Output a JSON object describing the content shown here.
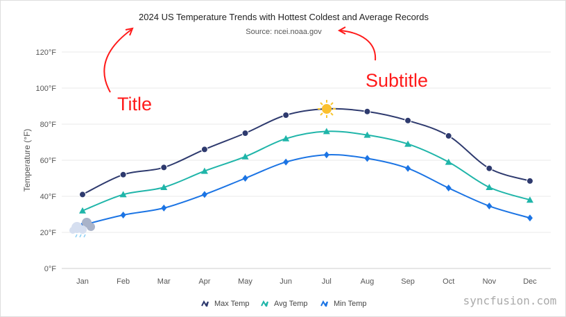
{
  "chart_data": {
    "type": "line",
    "title": "2024 US Temperature Trends with Hottest Coldest and Average Records",
    "subtitle": "Source: ncei.noaa.gov",
    "xlabel": "",
    "ylabel": "Temperature (°F)",
    "ylim": [
      0,
      120
    ],
    "yticks": [
      "0°F",
      "20°F",
      "40°F",
      "60°F",
      "80°F",
      "100°F",
      "120°F"
    ],
    "ytick_values": [
      0,
      20,
      40,
      60,
      80,
      100,
      120
    ],
    "categories": [
      "Jan",
      "Feb",
      "Mar",
      "Apr",
      "May",
      "Jun",
      "Jul",
      "Aug",
      "Sep",
      "Oct",
      "Nov",
      "Dec"
    ],
    "series": [
      {
        "name": "Max Temp",
        "color": "#2e3a6e",
        "marker": "circle",
        "values": [
          41,
          52,
          56,
          66,
          75,
          85,
          88.5,
          87,
          82,
          73.5,
          55.5,
          48.5
        ]
      },
      {
        "name": "Avg Temp",
        "color": "#1fb5a9",
        "marker": "triangle",
        "values": [
          32,
          41,
          45,
          54,
          62,
          72,
          76,
          74,
          69,
          59,
          45,
          38
        ]
      },
      {
        "name": "Min Temp",
        "color": "#1b74e4",
        "marker": "diamond",
        "values": [
          24,
          29.6,
          33.5,
          41,
          50,
          59,
          63,
          61,
          55.5,
          44.6,
          34.6,
          28
        ]
      }
    ],
    "grid": true,
    "legend": "bottom",
    "annotations": [
      {
        "label": "hottest",
        "icon": "sun-icon"
      },
      {
        "label": "coldest",
        "icon": "rain-cloud-icon"
      }
    ]
  },
  "callouts": {
    "title_label": "Title",
    "subtitle_label": "Subtitle",
    "color": "#ff1a1a"
  },
  "watermark": "syncfusion.com"
}
